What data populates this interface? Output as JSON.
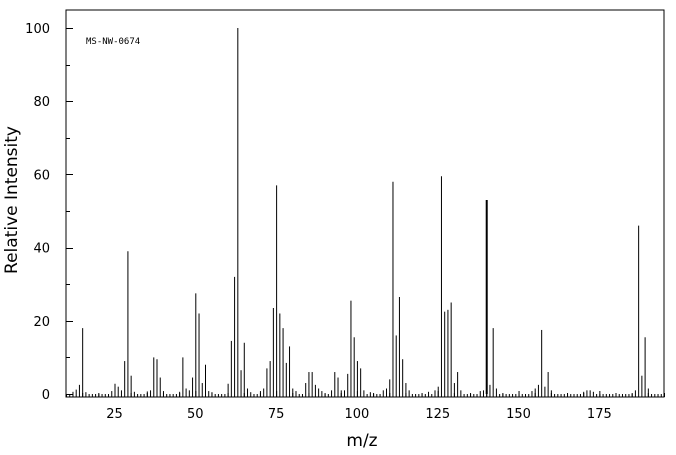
{
  "chart_data": {
    "type": "bar",
    "annotation": "MS-NW-0674",
    "xlabel": "m/z",
    "ylabel": "Relative Intensity",
    "xlim": [
      10,
      195
    ],
    "ylim": [
      0,
      100
    ],
    "x_ticks": [
      25,
      50,
      75,
      100,
      125,
      150,
      175
    ],
    "y_ticks": [
      0,
      20,
      40,
      60,
      80,
      100
    ],
    "grid": false,
    "legend": "none",
    "peaks": [
      [
        12,
        0.6
      ],
      [
        13,
        1.2
      ],
      [
        14,
        2.5
      ],
      [
        15,
        18.0
      ],
      [
        16,
        0.5
      ],
      [
        24,
        0.8
      ],
      [
        25,
        2.8
      ],
      [
        26,
        2.0
      ],
      [
        27,
        1.0
      ],
      [
        28,
        9.0
      ],
      [
        29,
        39.0
      ],
      [
        30,
        5.0
      ],
      [
        31,
        0.6
      ],
      [
        35,
        0.7
      ],
      [
        36,
        1.0
      ],
      [
        37,
        10.0
      ],
      [
        38,
        9.5
      ],
      [
        39,
        4.5
      ],
      [
        40,
        0.8
      ],
      [
        45,
        0.6
      ],
      [
        46,
        10.0
      ],
      [
        47,
        1.5
      ],
      [
        48,
        1.0
      ],
      [
        49,
        4.5
      ],
      [
        50,
        27.5
      ],
      [
        51,
        22.0
      ],
      [
        52,
        3.0
      ],
      [
        53,
        8.0
      ],
      [
        54,
        0.8
      ],
      [
        55,
        0.5
      ],
      [
        60,
        2.8
      ],
      [
        61,
        14.5
      ],
      [
        62,
        32.0
      ],
      [
        63,
        100.0
      ],
      [
        64,
        6.5
      ],
      [
        65,
        14.0
      ],
      [
        66,
        1.5
      ],
      [
        67,
        0.5
      ],
      [
        70,
        0.8
      ],
      [
        71,
        1.5
      ],
      [
        72,
        7.0
      ],
      [
        73,
        9.0
      ],
      [
        74,
        23.5
      ],
      [
        75,
        57.0
      ],
      [
        76,
        22.0
      ],
      [
        77,
        18.0
      ],
      [
        78,
        8.5
      ],
      [
        79,
        13.0
      ],
      [
        80,
        1.5
      ],
      [
        81,
        0.8
      ],
      [
        84,
        3.0
      ],
      [
        85,
        6.0
      ],
      [
        86,
        6.0
      ],
      [
        87,
        2.5
      ],
      [
        88,
        1.5
      ],
      [
        89,
        0.8
      ],
      [
        92,
        1.0
      ],
      [
        93,
        6.0
      ],
      [
        94,
        4.5
      ],
      [
        95,
        1.0
      ],
      [
        96,
        1.0
      ],
      [
        97,
        5.5
      ],
      [
        98,
        25.5
      ],
      [
        99,
        15.5
      ],
      [
        100,
        9.0
      ],
      [
        101,
        7.0
      ],
      [
        102,
        1.0
      ],
      [
        104,
        0.5
      ],
      [
        108,
        1.0
      ],
      [
        109,
        1.5
      ],
      [
        110,
        4.0
      ],
      [
        111,
        58.0
      ],
      [
        112,
        16.0
      ],
      [
        113,
        26.5
      ],
      [
        114,
        9.5
      ],
      [
        115,
        3.0
      ],
      [
        116,
        1.0
      ],
      [
        122,
        0.6
      ],
      [
        124,
        1.0
      ],
      [
        125,
        2.0
      ],
      [
        126,
        59.5
      ],
      [
        127,
        22.5
      ],
      [
        128,
        23.0
      ],
      [
        129,
        25.0
      ],
      [
        130,
        3.0
      ],
      [
        131,
        6.0
      ],
      [
        132,
        1.0
      ],
      [
        138,
        0.8
      ],
      [
        139,
        1.0
      ],
      [
        140,
        53.0
      ],
      [
        141,
        2.5
      ],
      [
        142,
        18.0
      ],
      [
        143,
        1.5
      ],
      [
        154,
        0.8
      ],
      [
        155,
        1.5
      ],
      [
        156,
        2.5
      ],
      [
        157,
        17.5
      ],
      [
        158,
        2.0
      ],
      [
        159,
        6.0
      ],
      [
        160,
        1.0
      ],
      [
        170,
        0.6
      ],
      [
        171,
        1.0
      ],
      [
        172,
        1.0
      ],
      [
        173,
        0.6
      ],
      [
        186,
        1.0
      ],
      [
        187,
        46.0
      ],
      [
        188,
        5.0
      ],
      [
        189,
        15.5
      ],
      [
        190,
        1.5
      ]
    ]
  }
}
